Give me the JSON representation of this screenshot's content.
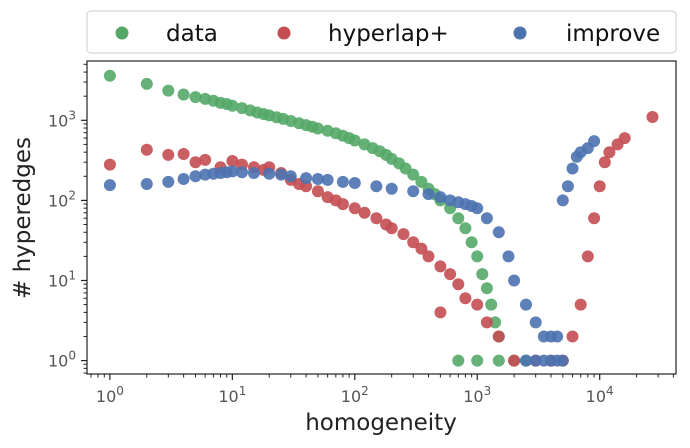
{
  "chart_data": {
    "type": "scatter",
    "xlabel": "homogeneity",
    "ylabel": "# hyperedges",
    "xscale": "log",
    "yscale": "log",
    "xlim": [
      0.65,
      42000
    ],
    "ylim": [
      0.68,
      5500
    ],
    "x_ticks": [
      {
        "value": 1,
        "base": "10",
        "exp": "0"
      },
      {
        "value": 10,
        "base": "10",
        "exp": "1"
      },
      {
        "value": 100,
        "base": "10",
        "exp": "2"
      },
      {
        "value": 1000,
        "base": "10",
        "exp": "3"
      },
      {
        "value": 10000,
        "base": "10",
        "exp": "4"
      }
    ],
    "y_ticks": [
      {
        "value": 1,
        "base": "10",
        "exp": "0"
      },
      {
        "value": 10,
        "base": "10",
        "exp": "1"
      },
      {
        "value": 100,
        "base": "10",
        "exp": "2"
      },
      {
        "value": 1000,
        "base": "10",
        "exp": "3"
      }
    ],
    "legend_position": "top, outside, horizontal",
    "grid": false,
    "series": [
      {
        "name": "data",
        "color": "#55a868",
        "points": [
          [
            1,
            3600
          ],
          [
            2,
            2850
          ],
          [
            3,
            2350
          ],
          [
            4,
            2100
          ],
          [
            5,
            1950
          ],
          [
            6,
            1850
          ],
          [
            7,
            1750
          ],
          [
            8,
            1650
          ],
          [
            9,
            1600
          ],
          [
            10,
            1520
          ],
          [
            12,
            1420
          ],
          [
            14,
            1330
          ],
          [
            16,
            1250
          ],
          [
            18,
            1200
          ],
          [
            20,
            1150
          ],
          [
            23,
            1090
          ],
          [
            26,
            1040
          ],
          [
            30,
            980
          ],
          [
            35,
            920
          ],
          [
            40,
            870
          ],
          [
            45,
            830
          ],
          [
            50,
            790
          ],
          [
            60,
            740
          ],
          [
            70,
            690
          ],
          [
            80,
            640
          ],
          [
            90,
            600
          ],
          [
            100,
            560
          ],
          [
            120,
            500
          ],
          [
            140,
            450
          ],
          [
            160,
            410
          ],
          [
            180,
            370
          ],
          [
            200,
            330
          ],
          [
            230,
            290
          ],
          [
            260,
            250
          ],
          [
            300,
            210
          ],
          [
            350,
            170
          ],
          [
            400,
            140
          ],
          [
            450,
            120
          ],
          [
            500,
            100
          ],
          [
            600,
            80
          ],
          [
            700,
            60
          ],
          [
            800,
            45
          ],
          [
            900,
            30
          ],
          [
            1000,
            20
          ],
          [
            1100,
            12
          ],
          [
            1200,
            8
          ],
          [
            1300,
            5
          ],
          [
            1400,
            3
          ],
          [
            1500,
            2
          ],
          [
            700,
            1
          ],
          [
            1000,
            1
          ],
          [
            1500,
            1
          ],
          [
            2000,
            1
          ],
          [
            2500,
            1
          ]
        ]
      },
      {
        "name": "hyperlap+",
        "color": "#c44e52",
        "points": [
          [
            1,
            280
          ],
          [
            2,
            430
          ],
          [
            3,
            370
          ],
          [
            4,
            380
          ],
          [
            5,
            300
          ],
          [
            6,
            320
          ],
          [
            8,
            260
          ],
          [
            10,
            310
          ],
          [
            12,
            280
          ],
          [
            15,
            260
          ],
          [
            18,
            240
          ],
          [
            20,
            260
          ],
          [
            25,
            220
          ],
          [
            30,
            180
          ],
          [
            35,
            160
          ],
          [
            40,
            150
          ],
          [
            50,
            130
          ],
          [
            60,
            110
          ],
          [
            70,
            100
          ],
          [
            80,
            90
          ],
          [
            100,
            80
          ],
          [
            120,
            70
          ],
          [
            150,
            60
          ],
          [
            180,
            50
          ],
          [
            200,
            45
          ],
          [
            250,
            38
          ],
          [
            300,
            30
          ],
          [
            350,
            25
          ],
          [
            400,
            20
          ],
          [
            500,
            15
          ],
          [
            600,
            12
          ],
          [
            700,
            9
          ],
          [
            800,
            6
          ],
          [
            500,
            4
          ],
          [
            1000,
            5
          ],
          [
            1200,
            3
          ],
          [
            1500,
            2
          ],
          [
            2000,
            1
          ],
          [
            3000,
            1
          ],
          [
            4000,
            1
          ],
          [
            5000,
            1
          ],
          [
            6000,
            2
          ],
          [
            7000,
            5
          ],
          [
            8000,
            20
          ],
          [
            9000,
            60
          ],
          [
            10000,
            150
          ],
          [
            11000,
            300
          ],
          [
            12000,
            400
          ],
          [
            14000,
            500
          ],
          [
            16000,
            600
          ],
          [
            27000,
            1100
          ]
        ]
      },
      {
        "name": "improve",
        "color": "#4c72b0",
        "points": [
          [
            1,
            155
          ],
          [
            2,
            160
          ],
          [
            3,
            170
          ],
          [
            4,
            185
          ],
          [
            5,
            200
          ],
          [
            6,
            210
          ],
          [
            7,
            215
          ],
          [
            8,
            220
          ],
          [
            9,
            225
          ],
          [
            10,
            230
          ],
          [
            12,
            225
          ],
          [
            15,
            220
          ],
          [
            20,
            215
          ],
          [
            25,
            210
          ],
          [
            30,
            200
          ],
          [
            40,
            190
          ],
          [
            50,
            185
          ],
          [
            60,
            180
          ],
          [
            80,
            170
          ],
          [
            100,
            165
          ],
          [
            150,
            150
          ],
          [
            200,
            140
          ],
          [
            300,
            130
          ],
          [
            400,
            120
          ],
          [
            500,
            110
          ],
          [
            600,
            100
          ],
          [
            700,
            95
          ],
          [
            800,
            90
          ],
          [
            900,
            85
          ],
          [
            1000,
            80
          ],
          [
            1200,
            60
          ],
          [
            1500,
            40
          ],
          [
            1800,
            20
          ],
          [
            2000,
            10
          ],
          [
            2500,
            5
          ],
          [
            3000,
            3
          ],
          [
            3500,
            2
          ],
          [
            4000,
            2
          ],
          [
            4500,
            2
          ],
          [
            2500,
            1
          ],
          [
            3000,
            1
          ],
          [
            3500,
            1
          ],
          [
            4000,
            1
          ],
          [
            4500,
            1
          ],
          [
            5000,
            1
          ],
          [
            5000,
            100
          ],
          [
            5500,
            150
          ],
          [
            6000,
            250
          ],
          [
            6500,
            350
          ],
          [
            7000,
            400
          ],
          [
            8000,
            450
          ],
          [
            9000,
            550
          ]
        ]
      }
    ]
  }
}
